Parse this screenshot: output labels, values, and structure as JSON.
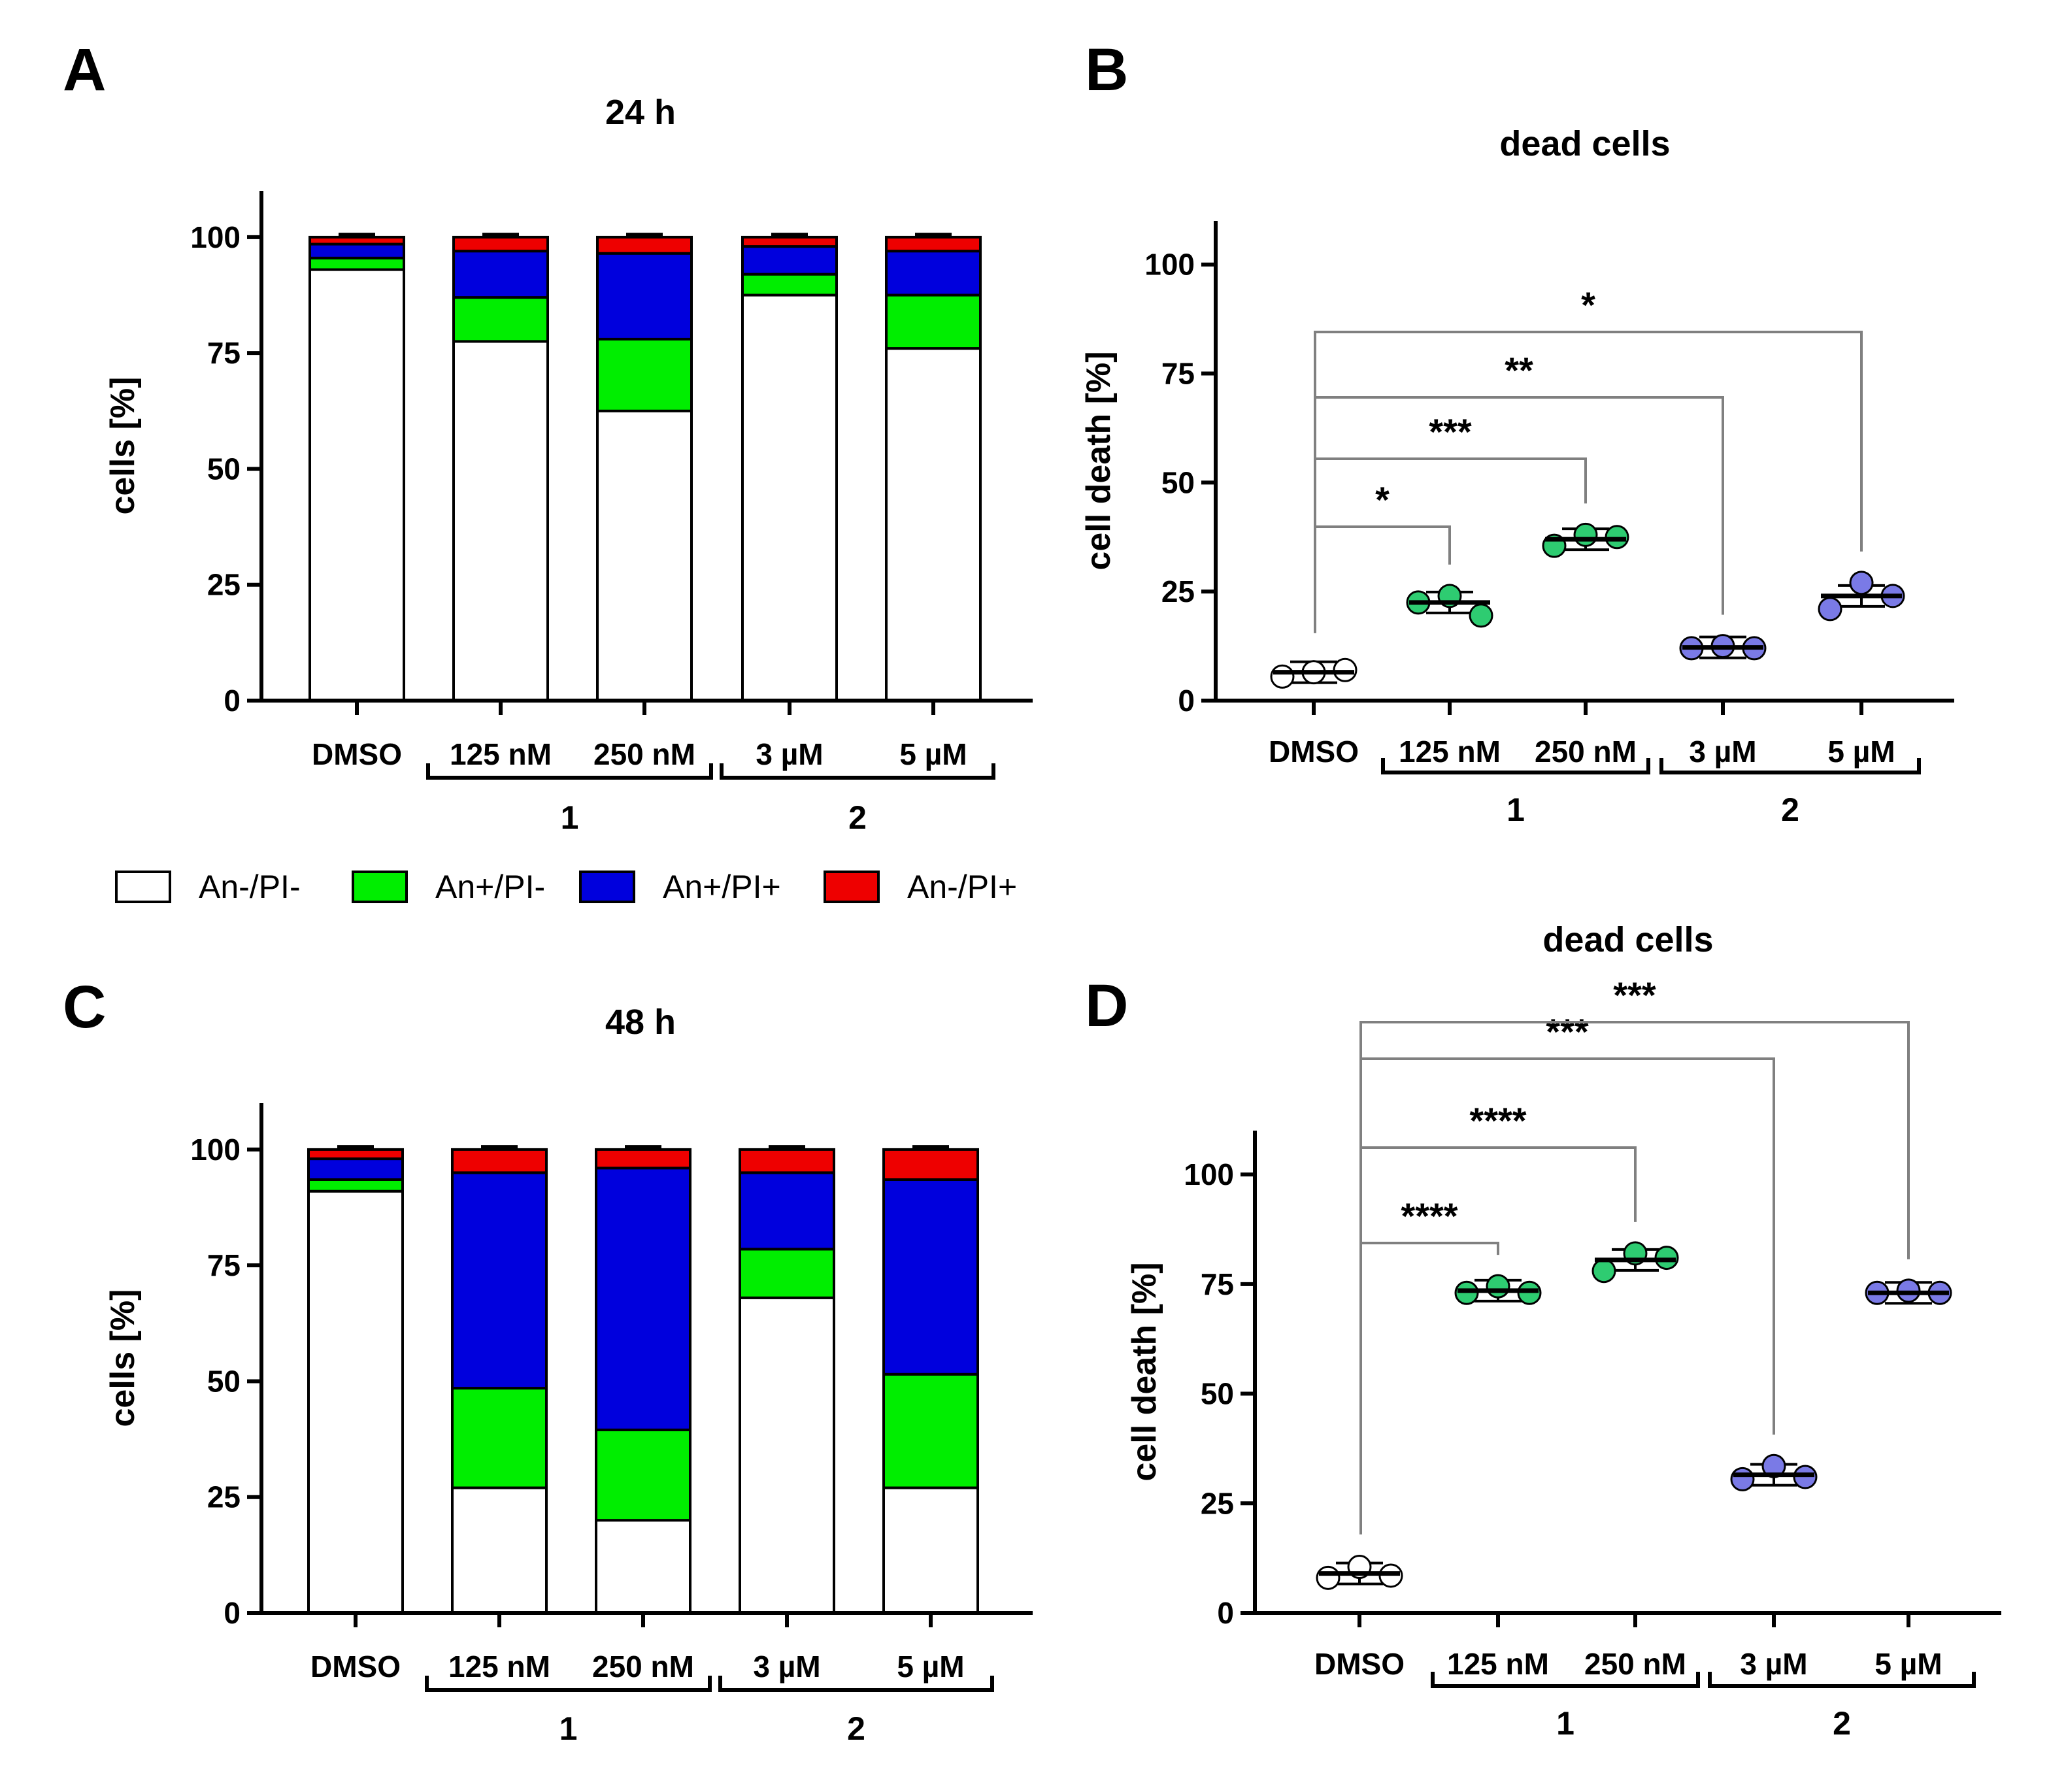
{
  "panel_labels": [
    "A",
    "B",
    "C",
    "D"
  ],
  "groups": [
    {
      "label": "1",
      "members": [
        "125 nM",
        "250 nM"
      ]
    },
    {
      "label": "2",
      "members": [
        "3 µM",
        "5 µM"
      ]
    }
  ],
  "legend": [
    {
      "label": "An-/PI-",
      "color": "#ffffff"
    },
    {
      "label": "An+/PI-",
      "color": "#00ee00"
    },
    {
      "label": "An+/PI+",
      "color": "#0000dd"
    },
    {
      "label": "An-/PI+",
      "color": "#ee0000"
    }
  ],
  "colors": {
    "green_point": "#2ecc71",
    "purple_point": "#7a7ae6",
    "white_point": "#ffffff",
    "bracket": "#808080"
  },
  "chart_data": [
    {
      "panel": "A",
      "type": "bar",
      "stacked": true,
      "title": "24 h",
      "ylabel": "cells [%]",
      "xlabel": "",
      "ylim": [
        0,
        110
      ],
      "yticks": [
        0,
        25,
        50,
        75,
        100
      ],
      "categories": [
        "DMSO",
        "125 nM",
        "250 nM",
        "3 µM",
        "5 µM"
      ],
      "series": [
        {
          "name": "An-/PI-",
          "values": [
            93,
            77.5,
            62.5,
            87.5,
            76
          ]
        },
        {
          "name": "An+/PI-",
          "values": [
            2.5,
            9.5,
            15.5,
            4.5,
            11.5
          ]
        },
        {
          "name": "An+/PI+",
          "values": [
            3,
            10,
            18.5,
            6,
            9.5
          ]
        },
        {
          "name": "An-/PI+",
          "values": [
            1.5,
            3,
            3.5,
            2,
            3
          ]
        }
      ]
    },
    {
      "panel": "B",
      "type": "scatter",
      "title": "dead cells",
      "ylabel": "cell death [%]",
      "xlabel": "",
      "ylim": [
        0,
        110
      ],
      "yticks": [
        0,
        25,
        50,
        75,
        100
      ],
      "categories": [
        "DMSO",
        "125 nM",
        "250 nM",
        "3 µM",
        "5 µM"
      ],
      "points": [
        [
          5.5,
          6.5,
          7
        ],
        [
          22.5,
          24,
          19.5
        ],
        [
          35.5,
          38,
          37.5
        ],
        [
          12,
          12.5,
          12
        ],
        [
          21,
          27,
          24
        ]
      ],
      "means": [
        6.5,
        22.5,
        37,
        12.2,
        24
      ],
      "comparisons": [
        {
          "from": "DMSO",
          "to": "125 nM",
          "label": "*"
        },
        {
          "from": "DMSO",
          "to": "250 nM",
          "label": "***"
        },
        {
          "from": "DMSO",
          "to": "3 µM",
          "label": "**"
        },
        {
          "from": "DMSO",
          "to": "5 µM",
          "label": "*"
        }
      ]
    },
    {
      "panel": "C",
      "type": "bar",
      "stacked": true,
      "title": "48 h",
      "ylabel": "cells [%]",
      "xlabel": "",
      "ylim": [
        0,
        110
      ],
      "yticks": [
        0,
        25,
        50,
        75,
        100
      ],
      "categories": [
        "DMSO",
        "125 nM",
        "250 nM",
        "3 µM",
        "5 µM"
      ],
      "series": [
        {
          "name": "An-/PI-",
          "values": [
            91,
            27,
            20,
            68,
            27
          ]
        },
        {
          "name": "An+/PI-",
          "values": [
            2.5,
            21.5,
            19.5,
            10.5,
            24.5
          ]
        },
        {
          "name": "An+/PI+",
          "values": [
            4.5,
            46.5,
            56.5,
            16.5,
            42
          ]
        },
        {
          "name": "An-/PI+",
          "values": [
            2,
            5,
            4,
            5,
            6.5
          ]
        }
      ]
    },
    {
      "panel": "D",
      "type": "scatter",
      "title": "dead cells",
      "ylabel": "cell death [%]",
      "xlabel": "",
      "ylim": [
        0,
        110
      ],
      "yticks": [
        0,
        25,
        50,
        75,
        100
      ],
      "categories": [
        "DMSO",
        "125 nM",
        "250 nM",
        "3 µM",
        "5 µM"
      ],
      "points": [
        [
          8,
          10.5,
          8.5
        ],
        [
          73,
          74.5,
          73
        ],
        [
          78,
          82,
          81
        ],
        [
          30.5,
          33.5,
          31
        ],
        [
          73,
          73.5,
          73
        ]
      ],
      "means": [
        9,
        73.5,
        80.5,
        31.5,
        73
      ],
      "comparisons": [
        {
          "from": "DMSO",
          "to": "125 nM",
          "label": "****"
        },
        {
          "from": "DMSO",
          "to": "250 nM",
          "label": "****"
        },
        {
          "from": "DMSO",
          "to": "3 µM",
          "label": "***"
        },
        {
          "from": "DMSO",
          "to": "5 µM",
          "label": "***"
        }
      ]
    }
  ]
}
